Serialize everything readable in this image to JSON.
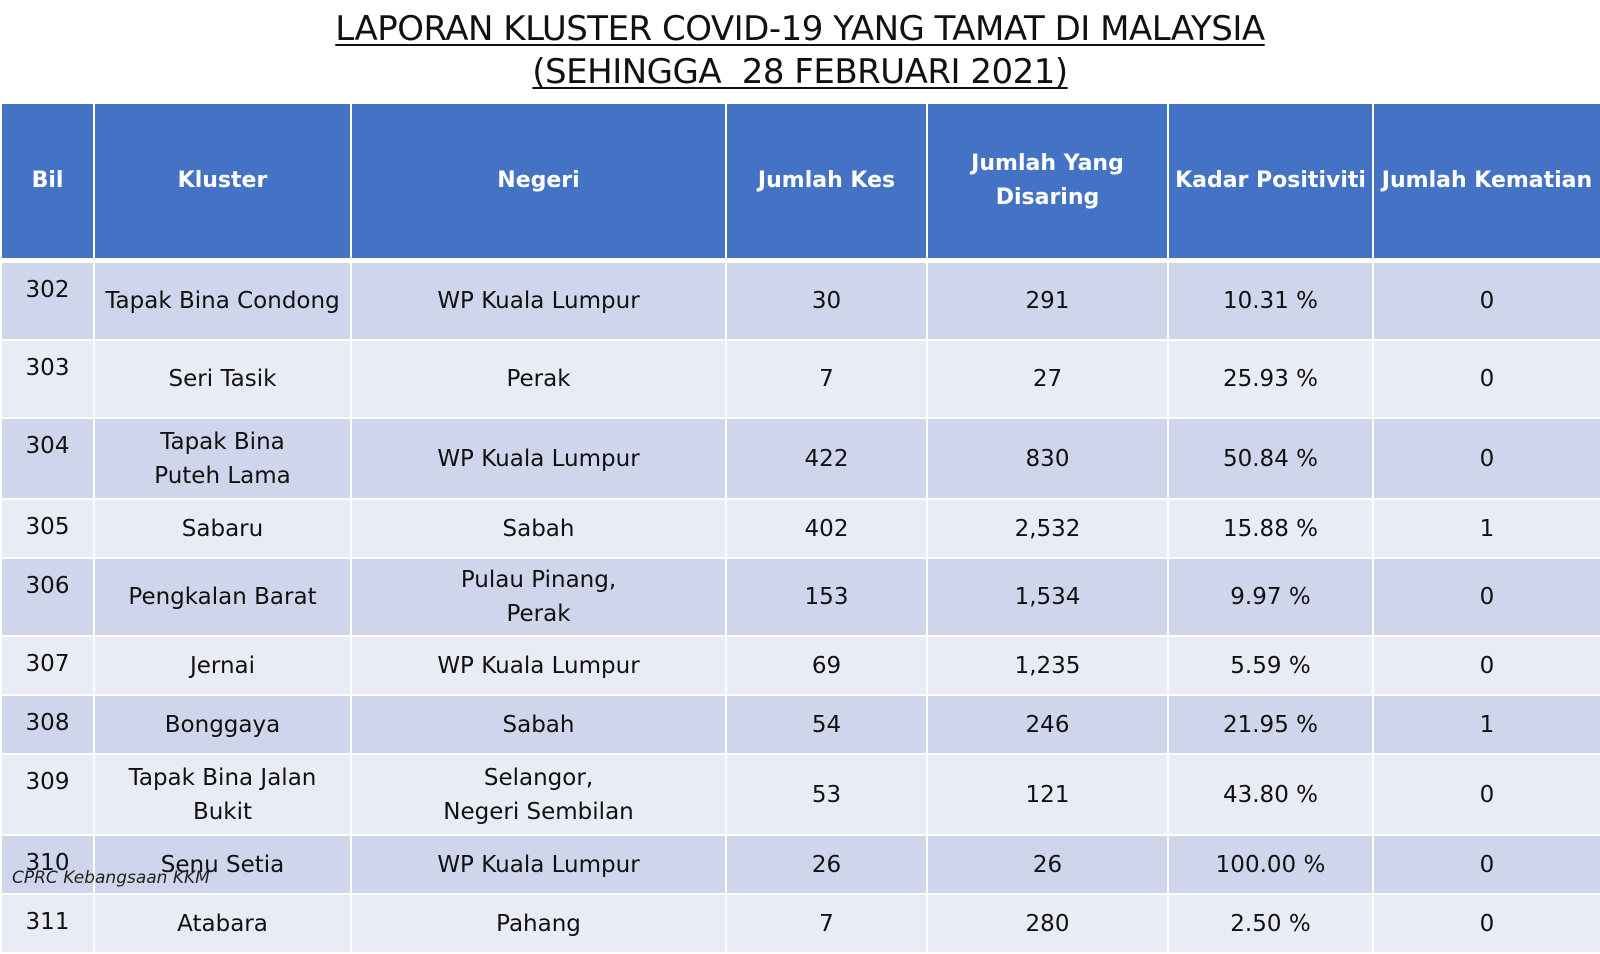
{
  "header": {
    "title": "LAPORAN KLUSTER COVID-19 YANG TAMAT DI MALAYSIA",
    "subtitle": "(SEHINGGA  28 FEBRUARI 2021)"
  },
  "table": {
    "columns": [
      "Bil",
      "Kluster",
      "Negeri",
      "Jumlah Kes",
      "Jumlah Yang\nDisaring",
      "Kadar Positiviti",
      "Jumlah Kematian"
    ],
    "rows": [
      [
        "302",
        "Tapak Bina Condong",
        "WP Kuala Lumpur",
        "30",
        "291",
        "10.31 %",
        "0"
      ],
      [
        "303",
        "Seri Tasik",
        "Perak",
        "7",
        "27",
        "25.93 %",
        "0"
      ],
      [
        "304",
        "Tapak Bina\nPuteh Lama",
        "WP Kuala Lumpur",
        "422",
        "830",
        "50.84 %",
        "0"
      ],
      [
        "305",
        "Sabaru",
        "Sabah",
        "402",
        "2,532",
        "15.88 %",
        "1"
      ],
      [
        "306",
        "Pengkalan Barat",
        "Pulau Pinang,\nPerak",
        "153",
        "1,534",
        "9.97 %",
        "0"
      ],
      [
        "307",
        "Jernai",
        "WP Kuala Lumpur",
        "69",
        "1,235",
        "5.59 %",
        "0"
      ],
      [
        "308",
        "Bonggaya",
        "Sabah",
        "54",
        "246",
        "21.95 %",
        "1"
      ],
      [
        "309",
        "Tapak Bina Jalan Bukit",
        "Selangor,\nNegeri Sembilan",
        "53",
        "121",
        "43.80 %",
        "0"
      ],
      [
        "310",
        "Senu Setia",
        "WP Kuala Lumpur",
        "26",
        "26",
        "100.00 %",
        "0"
      ],
      [
        "311",
        "Atabara",
        "Pahang",
        "7",
        "280",
        "2.50 %",
        "0"
      ]
    ]
  },
  "footer": {
    "source": "CPRC Kebangsaan KKM"
  }
}
